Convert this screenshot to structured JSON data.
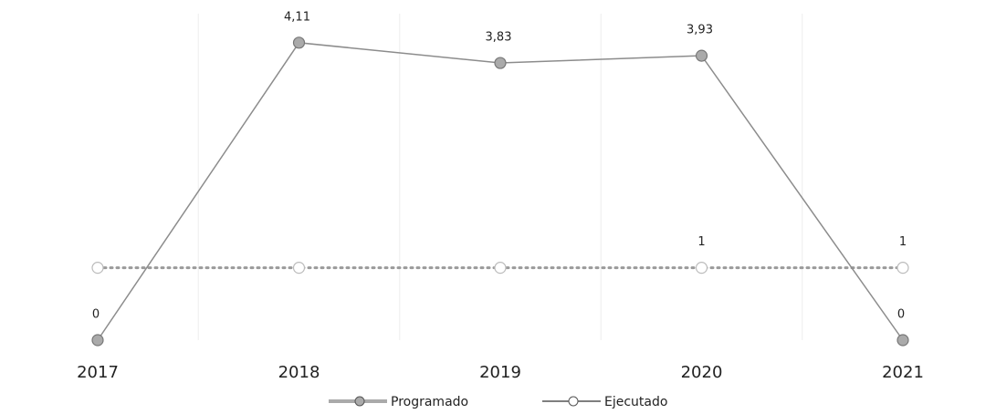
{
  "chart_data": {
    "type": "line",
    "categories": [
      "2017",
      "2018",
      "2019",
      "2020",
      "2021"
    ],
    "series": [
      {
        "name": "Programado",
        "color": "#9a9a9a",
        "values": [
          1,
          1,
          1,
          1,
          1
        ],
        "value_labels": [
          null,
          null,
          null,
          "1",
          "1"
        ]
      },
      {
        "name": "Ejecutado",
        "color": "#8c8c8c",
        "values": [
          0,
          4.11,
          3.83,
          3.93,
          0
        ],
        "value_labels": [
          "0",
          "4,11",
          "3,83",
          "3,93",
          "0"
        ]
      }
    ],
    "ylim": [
      0,
      4.7
    ],
    "grid": true
  }
}
